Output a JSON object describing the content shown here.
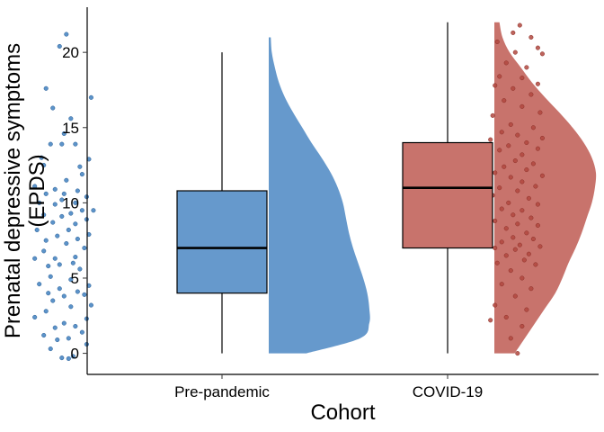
{
  "chart_data": {
    "type": "raincloud",
    "title": "",
    "xlabel": "Cohort",
    "ylabel": [
      "Prenatal depressive symptoms",
      "(EPDS)"
    ],
    "ylim": [
      -1.4,
      23
    ],
    "yticks": [
      0,
      5,
      10,
      15,
      20
    ],
    "grid": false,
    "legend": "none",
    "categories": [
      "Pre-pandemic",
      "COVID-19"
    ],
    "series": [
      {
        "colors": {
          "fill": "#6699CC",
          "point": "#3F80C0",
          "point_edge": "#2A5F96"
        },
        "box": {
          "min": 0,
          "q1": 4,
          "median": 7,
          "q3": 10.8,
          "max": 20
        },
        "density": {
          "y": [
            0,
            1,
            2,
            3,
            4,
            5,
            6,
            7,
            8,
            9,
            10,
            11,
            12,
            13,
            14,
            15,
            16,
            17,
            18,
            19,
            20,
            21
          ],
          "d": [
            0.37,
            0.9,
            0.99,
            0.99,
            0.97,
            0.93,
            0.88,
            0.83,
            0.79,
            0.76,
            0.73,
            0.68,
            0.61,
            0.52,
            0.42,
            0.33,
            0.24,
            0.16,
            0.1,
            0.06,
            0.03,
            0.02
          ]
        },
        "points": [
          [
            0.31,
            21.2
          ],
          [
            0.28,
            20.4
          ],
          [
            0.22,
            17.6
          ],
          [
            0.42,
            17.0
          ],
          [
            0.25,
            16.3
          ],
          [
            0.33,
            15.6
          ],
          [
            0.3,
            14.6
          ],
          [
            0.35,
            13.9
          ],
          [
            0.24,
            13.9
          ],
          [
            0.29,
            13.9
          ],
          [
            0.2,
            13.0
          ],
          [
            0.41,
            12.9
          ],
          [
            0.37,
            12.4
          ],
          [
            0.21,
            12.5
          ],
          [
            0.38,
            11.9
          ],
          [
            0.31,
            11.5
          ],
          [
            0.17,
            11.1
          ],
          [
            0.26,
            10.9
          ],
          [
            0.36,
            10.8
          ],
          [
            0.3,
            10.6
          ],
          [
            0.22,
            10.6
          ],
          [
            0.4,
            10.4
          ],
          [
            0.29,
            10.2
          ],
          [
            0.35,
            10.0
          ],
          [
            0.19,
            10.0
          ],
          [
            0.26,
            9.9
          ],
          [
            0.43,
            9.5
          ],
          [
            0.38,
            9.5
          ],
          [
            0.33,
            9.3
          ],
          [
            0.21,
            9.2
          ],
          [
            0.29,
            9.1
          ],
          [
            0.4,
            8.9
          ],
          [
            0.25,
            8.7
          ],
          [
            0.35,
            8.6
          ],
          [
            0.18,
            8.2
          ],
          [
            0.32,
            8.2
          ],
          [
            0.41,
            7.9
          ],
          [
            0.27,
            7.8
          ],
          [
            0.36,
            7.6
          ],
          [
            0.22,
            7.5
          ],
          [
            0.31,
            7.3
          ],
          [
            0.39,
            7.0
          ],
          [
            0.21,
            6.8
          ],
          [
            0.35,
            6.4
          ],
          [
            0.26,
            6.3
          ],
          [
            0.17,
            6.3
          ],
          [
            0.34,
            6.0
          ],
          [
            0.28,
            5.9
          ],
          [
            0.23,
            5.8
          ],
          [
            0.37,
            5.6
          ],
          [
            0.24,
            5.1
          ],
          [
            0.33,
            4.9
          ],
          [
            0.41,
            4.5
          ],
          [
            0.19,
            4.6
          ],
          [
            0.28,
            4.3
          ],
          [
            0.36,
            4.1
          ],
          [
            0.23,
            4.0
          ],
          [
            0.39,
            3.9
          ],
          [
            0.3,
            3.8
          ],
          [
            0.25,
            3.5
          ],
          [
            0.42,
            3.2
          ],
          [
            0.33,
            3.1
          ],
          [
            0.22,
            2.8
          ],
          [
            0.17,
            2.4
          ],
          [
            0.4,
            2.3
          ],
          [
            0.3,
            2.0
          ],
          [
            0.35,
            1.8
          ],
          [
            0.26,
            1.7
          ],
          [
            0.38,
            1.4
          ],
          [
            0.21,
            1.2
          ],
          [
            0.32,
            1.0
          ],
          [
            0.27,
            0.9
          ],
          [
            0.4,
            0.6
          ],
          [
            0.24,
            0.3
          ],
          [
            0.34,
            -0.2
          ],
          [
            0.29,
            -0.3
          ],
          [
            0.32,
            -0.35
          ]
        ]
      },
      {
        "colors": {
          "fill": "#C8736C",
          "point": "#B2483F",
          "point_edge": "#8A3028"
        },
        "box": {
          "min": 0,
          "q1": 7,
          "median": 11,
          "q3": 14,
          "max": 22
        },
        "density": {
          "y": [
            0,
            1,
            2,
            3,
            4,
            5,
            6,
            7,
            8,
            9,
            10,
            11,
            12,
            13,
            14,
            15,
            16,
            17,
            18,
            19,
            20,
            21,
            22
          ],
          "d": [
            0.2,
            0.3,
            0.4,
            0.5,
            0.6,
            0.67,
            0.73,
            0.8,
            0.86,
            0.91,
            0.96,
            0.99,
            1.0,
            0.96,
            0.88,
            0.77,
            0.64,
            0.5,
            0.37,
            0.26,
            0.15,
            0.08,
            0.05
          ]
        },
        "points": [
          [
            2.32,
            21.8
          ],
          [
            2.29,
            21.3
          ],
          [
            2.37,
            21.0
          ],
          [
            2.22,
            20.7
          ],
          [
            2.4,
            20.3
          ],
          [
            2.3,
            20.0
          ],
          [
            2.42,
            19.9
          ],
          [
            2.26,
            19.3
          ],
          [
            2.35,
            19.0
          ],
          [
            2.23,
            18.4
          ],
          [
            2.33,
            18.3
          ],
          [
            2.4,
            17.9
          ],
          [
            2.21,
            17.8
          ],
          [
            2.29,
            17.6
          ],
          [
            2.37,
            17.2
          ],
          [
            2.25,
            16.8
          ],
          [
            2.33,
            16.4
          ],
          [
            2.41,
            16.0
          ],
          [
            2.2,
            15.8
          ],
          [
            2.28,
            15.2
          ],
          [
            2.38,
            15.0
          ],
          [
            2.24,
            14.7
          ],
          [
            2.31,
            14.5
          ],
          [
            2.42,
            14.3
          ],
          [
            2.19,
            14.2
          ],
          [
            2.35,
            14.0
          ],
          [
            2.27,
            13.8
          ],
          [
            2.4,
            13.6
          ],
          [
            2.23,
            13.5
          ],
          [
            2.33,
            13.2
          ],
          [
            2.18,
            12.9
          ],
          [
            2.3,
            12.8
          ],
          [
            2.38,
            12.6
          ],
          [
            2.25,
            12.4
          ],
          [
            2.35,
            12.2
          ],
          [
            2.21,
            12.0
          ],
          [
            2.42,
            11.8
          ],
          [
            2.28,
            11.7
          ],
          [
            2.33,
            11.4
          ],
          [
            2.39,
            11.1
          ],
          [
            2.23,
            11.0
          ],
          [
            2.31,
            10.8
          ],
          [
            2.2,
            10.5
          ],
          [
            2.36,
            10.3
          ],
          [
            2.27,
            10.0
          ],
          [
            2.4,
            9.9
          ],
          [
            2.24,
            9.6
          ],
          [
            2.33,
            9.5
          ],
          [
            2.29,
            9.2
          ],
          [
            2.37,
            9.0
          ],
          [
            2.21,
            8.8
          ],
          [
            2.31,
            8.6
          ],
          [
            2.4,
            8.5
          ],
          [
            2.26,
            8.3
          ],
          [
            2.35,
            8.0
          ],
          [
            2.19,
            7.8
          ],
          [
            2.29,
            7.7
          ],
          [
            2.38,
            7.6
          ],
          [
            2.24,
            7.4
          ],
          [
            2.32,
            7.2
          ],
          [
            2.41,
            7.1
          ],
          [
            2.21,
            7.0
          ],
          [
            2.3,
            6.9
          ],
          [
            2.36,
            6.6
          ],
          [
            2.26,
            6.5
          ],
          [
            2.34,
            6.2
          ],
          [
            2.22,
            6.0
          ],
          [
            2.39,
            5.9
          ],
          [
            2.28,
            5.5
          ],
          [
            2.33,
            5.0
          ],
          [
            2.24,
            4.6
          ],
          [
            2.37,
            4.3
          ],
          [
            2.3,
            3.8
          ],
          [
            2.21,
            3.2
          ],
          [
            2.35,
            2.9
          ],
          [
            2.26,
            2.4
          ],
          [
            2.19,
            2.2
          ],
          [
            2.33,
            1.8
          ],
          [
            2.28,
            1.0
          ],
          [
            2.31,
            0.0
          ]
        ]
      }
    ]
  }
}
